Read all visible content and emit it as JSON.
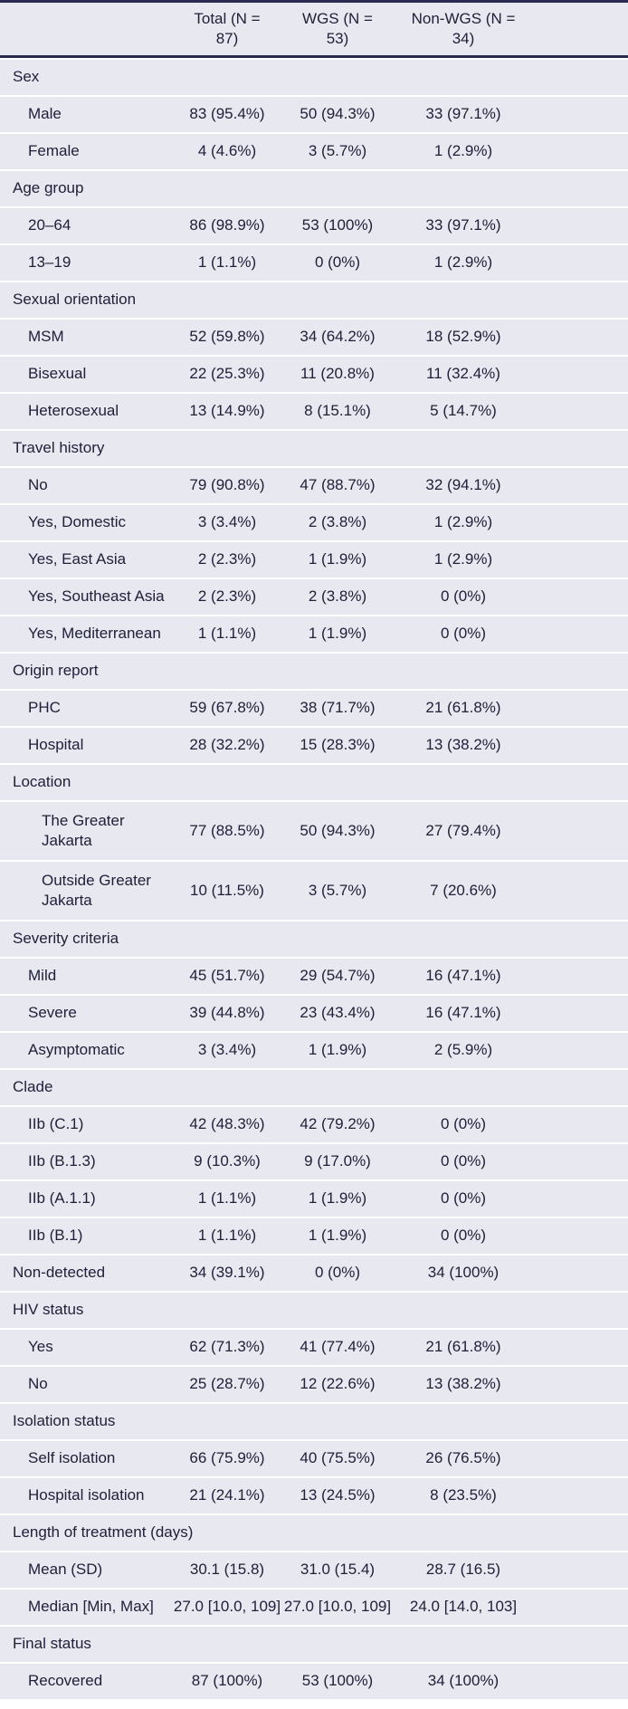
{
  "colors": {
    "band": "#e8e8f1",
    "rule": "#2b2b52",
    "text": "#20203a"
  },
  "table": {
    "header": {
      "label": "",
      "columns": [
        "Total (N = 87)",
        "WGS (N = 53)",
        "Non-WGS (N = 34)"
      ]
    },
    "rows": [
      {
        "kind": "group",
        "label": "Sex",
        "indent": 0
      },
      {
        "kind": "item",
        "label": "Male",
        "indent": 1,
        "values": [
          "83 (95.4%)",
          "50 (94.3%)",
          "33 (97.1%)"
        ]
      },
      {
        "kind": "item",
        "label": "Female",
        "indent": 1,
        "values": [
          "4 (4.6%)",
          "3 (5.7%)",
          "1 (2.9%)"
        ]
      },
      {
        "kind": "group",
        "label": "Age group",
        "indent": 0
      },
      {
        "kind": "item",
        "label": "20–64",
        "indent": 1,
        "values": [
          "86 (98.9%)",
          "53 (100%)",
          "33 (97.1%)"
        ]
      },
      {
        "kind": "item",
        "label": "13–19",
        "indent": 1,
        "values": [
          "1 (1.1%)",
          "0 (0%)",
          "1 (2.9%)"
        ]
      },
      {
        "kind": "group",
        "label": "Sexual orientation",
        "indent": 0
      },
      {
        "kind": "item",
        "label": "MSM",
        "indent": 1,
        "values": [
          "52 (59.8%)",
          "34 (64.2%)",
          "18 (52.9%)"
        ]
      },
      {
        "kind": "item",
        "label": "Bisexual",
        "indent": 1,
        "values": [
          "22 (25.3%)",
          "11 (20.8%)",
          "11 (32.4%)"
        ]
      },
      {
        "kind": "item",
        "label": "Heterosexual",
        "indent": 1,
        "values": [
          "13 (14.9%)",
          "8 (15.1%)",
          "5 (14.7%)"
        ]
      },
      {
        "kind": "group",
        "label": "Travel history",
        "indent": 0
      },
      {
        "kind": "item",
        "label": "No",
        "indent": 1,
        "values": [
          "79 (90.8%)",
          "47 (88.7%)",
          "32 (94.1%)"
        ]
      },
      {
        "kind": "item",
        "label": "Yes, Domestic",
        "indent": 1,
        "values": [
          "3 (3.4%)",
          "2 (3.8%)",
          "1 (2.9%)"
        ]
      },
      {
        "kind": "item",
        "label": "Yes, East Asia",
        "indent": 1,
        "values": [
          "2 (2.3%)",
          "1 (1.9%)",
          "1 (2.9%)"
        ]
      },
      {
        "kind": "item",
        "label": "Yes, Southeast Asia",
        "indent": 1,
        "values": [
          "2 (2.3%)",
          "2 (3.8%)",
          "0 (0%)"
        ]
      },
      {
        "kind": "item",
        "label": "Yes, Mediterranean",
        "indent": 1,
        "values": [
          "1 (1.1%)",
          "1 (1.9%)",
          "0 (0%)"
        ]
      },
      {
        "kind": "group",
        "label": "Origin report",
        "indent": 0
      },
      {
        "kind": "item",
        "label": "PHC",
        "indent": 1,
        "values": [
          "59 (67.8%)",
          "38 (71.7%)",
          "21 (61.8%)"
        ]
      },
      {
        "kind": "item",
        "label": "Hospital",
        "indent": 1,
        "values": [
          "28 (32.2%)",
          "15 (28.3%)",
          "13 (38.2%)"
        ]
      },
      {
        "kind": "group",
        "label": "Location",
        "indent": 0
      },
      {
        "kind": "item",
        "label": "The Greater Jakarta",
        "indent": 2,
        "tall": true,
        "wrap": true,
        "values": [
          "77 (88.5%)",
          "50 (94.3%)",
          "27 (79.4%)"
        ]
      },
      {
        "kind": "item",
        "label": "Outside Greater Jakarta",
        "indent": 2,
        "tall": true,
        "wrap": true,
        "values": [
          "10 (11.5%)",
          "3 (5.7%)",
          "7 (20.6%)"
        ]
      },
      {
        "kind": "group",
        "label": "Severity criteria",
        "indent": 0
      },
      {
        "kind": "item",
        "label": "Mild",
        "indent": 1,
        "values": [
          "45 (51.7%)",
          "29 (54.7%)",
          "16 (47.1%)"
        ]
      },
      {
        "kind": "item",
        "label": "Severe",
        "indent": 1,
        "values": [
          "39 (44.8%)",
          "23 (43.4%)",
          "16 (47.1%)"
        ]
      },
      {
        "kind": "item",
        "label": "Asymptomatic",
        "indent": 1,
        "values": [
          "3 (3.4%)",
          "1 (1.9%)",
          "2 (5.9%)"
        ]
      },
      {
        "kind": "group",
        "label": "Clade",
        "indent": 0
      },
      {
        "kind": "item",
        "label": "IIb (C.1)",
        "indent": 1,
        "values": [
          "42 (48.3%)",
          "42 (79.2%)",
          "0 (0%)"
        ]
      },
      {
        "kind": "item",
        "label": "IIb (B.1.3)",
        "indent": 1,
        "values": [
          "9 (10.3%)",
          "9 (17.0%)",
          "0 (0%)"
        ]
      },
      {
        "kind": "item",
        "label": "IIb (A.1.1)",
        "indent": 1,
        "values": [
          "1 (1.1%)",
          "1 (1.9%)",
          "0 (0%)"
        ]
      },
      {
        "kind": "item",
        "label": "IIb (B.1)",
        "indent": 1,
        "values": [
          "1 (1.1%)",
          "1 (1.9%)",
          "0 (0%)"
        ]
      },
      {
        "kind": "item",
        "label": "Non-detected",
        "indent": 0,
        "values": [
          "34 (39.1%)",
          "0 (0%)",
          "34 (100%)"
        ]
      },
      {
        "kind": "group",
        "label": "HIV status",
        "indent": 0
      },
      {
        "kind": "item",
        "label": "Yes",
        "indent": 1,
        "values": [
          "62 (71.3%)",
          "41 (77.4%)",
          "21 (61.8%)"
        ]
      },
      {
        "kind": "item",
        "label": "No",
        "indent": 1,
        "values": [
          "25 (28.7%)",
          "12 (22.6%)",
          "13 (38.2%)"
        ]
      },
      {
        "kind": "group",
        "label": "Isolation status",
        "indent": 0
      },
      {
        "kind": "item",
        "label": "Self isolation",
        "indent": 1,
        "values": [
          "66 (75.9%)",
          "40 (75.5%)",
          "26 (76.5%)"
        ]
      },
      {
        "kind": "item",
        "label": "Hospital isolation",
        "indent": 1,
        "values": [
          "21 (24.1%)",
          "13 (24.5%)",
          "8 (23.5%)"
        ]
      },
      {
        "kind": "group",
        "label": "Length of treatment (days)",
        "indent": 0
      },
      {
        "kind": "item",
        "label": "Mean (SD)",
        "indent": 1,
        "values": [
          "30.1 (15.8)",
          "31.0 (15.4)",
          "28.7 (16.5)"
        ]
      },
      {
        "kind": "item",
        "label": "Median [Min, Max]",
        "indent": 1,
        "values": [
          "27.0 [10.0, 109]",
          "27.0 [10.0, 109]",
          "24.0 [14.0, 103]"
        ]
      },
      {
        "kind": "group",
        "label": "Final status",
        "indent": 0
      },
      {
        "kind": "item",
        "label": "Recovered",
        "indent": 1,
        "values": [
          "87 (100%)",
          "53 (100%)",
          "34 (100%)"
        ]
      }
    ]
  }
}
